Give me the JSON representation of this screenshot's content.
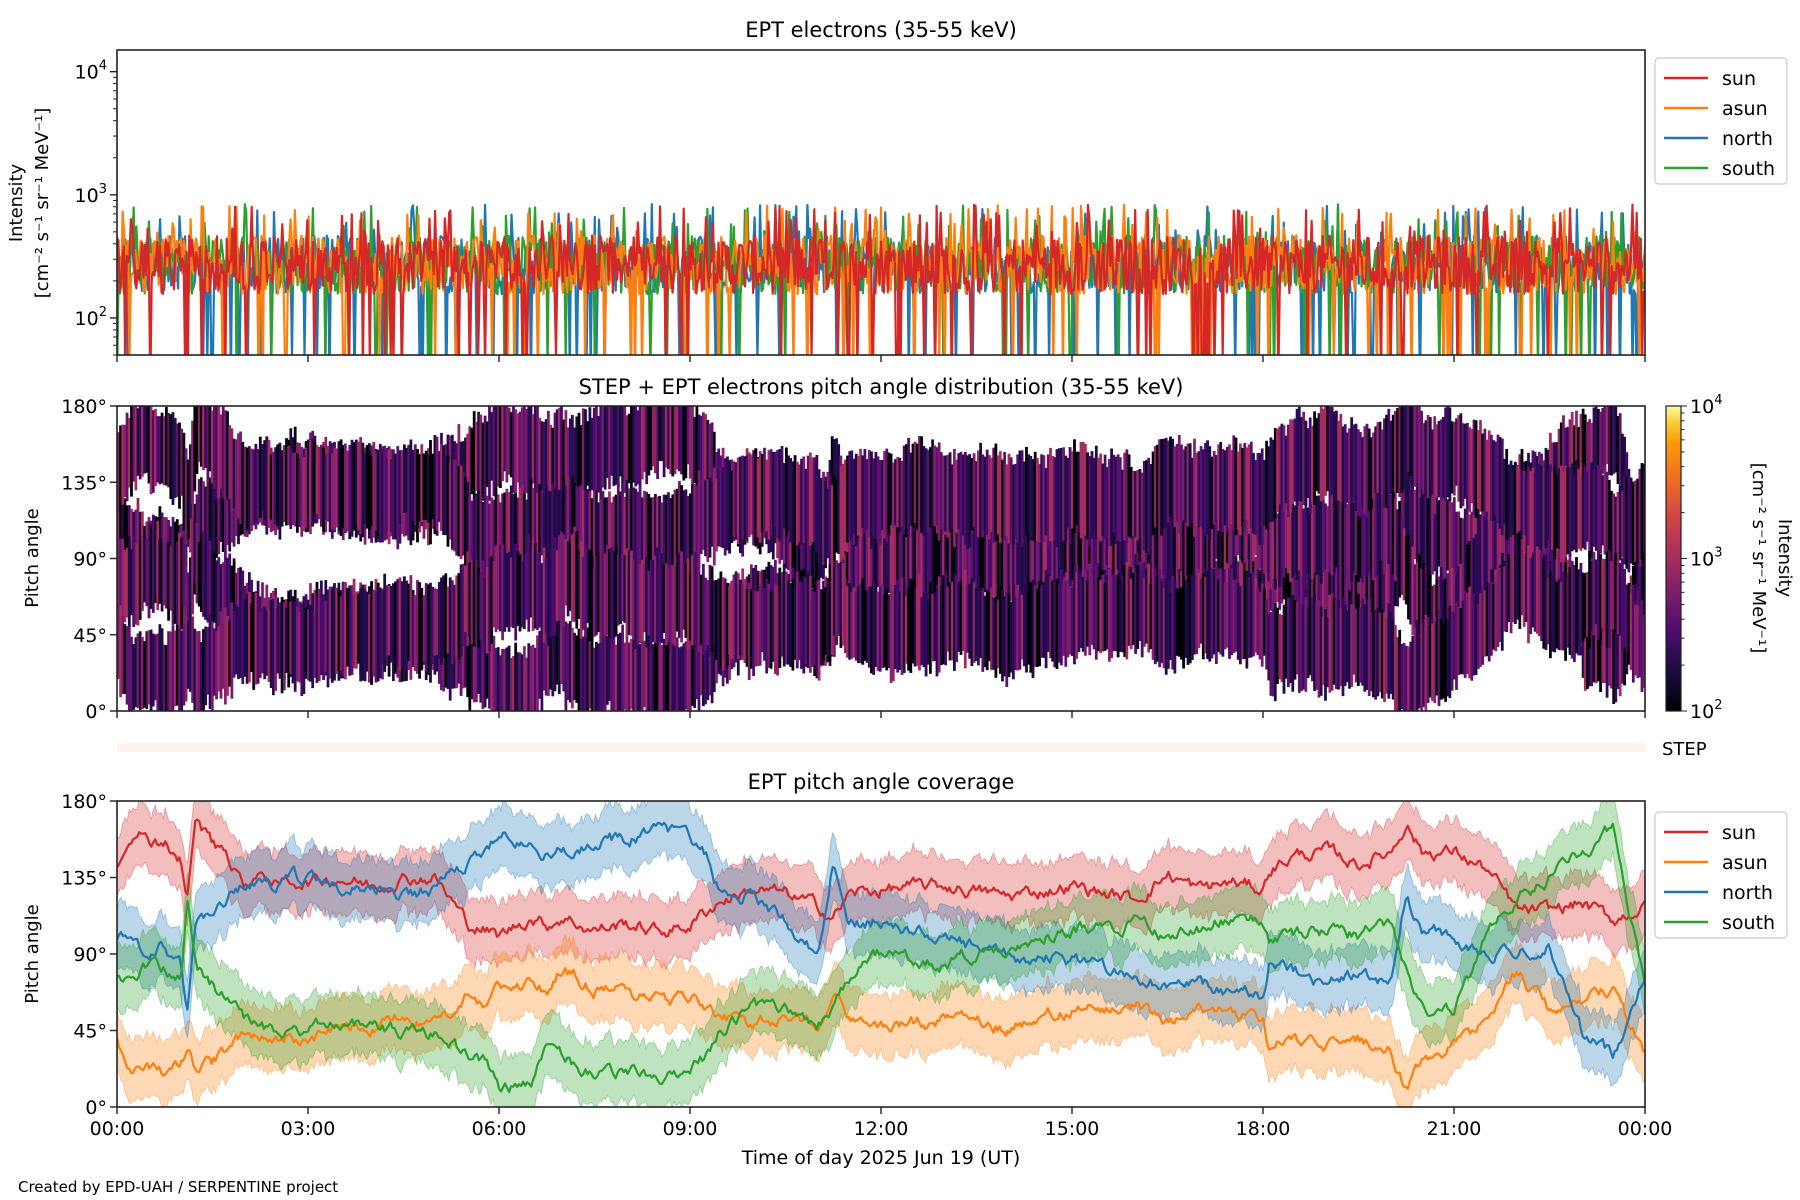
{
  "credit": "Created by EPD-UAH / SERPENTINE project",
  "colors": {
    "sun": "#d62728",
    "asun": "#ff7f0e",
    "north": "#1f77b4",
    "south": "#2ca02c",
    "step_strip": "#fdf1ec"
  },
  "chart_data": [
    {
      "id": "intensity",
      "type": "line",
      "title": "EPT electrons (35-55 keV)",
      "ylabel_line1": "Intensity",
      "ylabel_line2": "[cm⁻² s⁻¹ sr⁻¹ MeV⁻¹]",
      "yscale": "log",
      "ylim": [
        50,
        15000
      ],
      "yticks": [
        {
          "value": 100,
          "label_base": "10",
          "label_exp": "2"
        },
        {
          "value": 1000,
          "label_base": "10",
          "label_exp": "3"
        },
        {
          "value": 10000,
          "label_base": "10",
          "label_exp": "4"
        }
      ],
      "xlim_hours": [
        0,
        24
      ],
      "legend": [
        "sun",
        "asun",
        "north",
        "south"
      ],
      "legend_position": "outside-upper-right",
      "series_summary": {
        "typical_level": 270,
        "typical_peak": 700,
        "max_spike": 900,
        "dropouts_to_below": 50
      },
      "series_order": [
        "north",
        "south",
        "asun",
        "sun"
      ]
    },
    {
      "id": "pad",
      "type": "heatmap",
      "title": "STEP + EPT electrons pitch angle distribution (35-55 keV)",
      "ylabel": "Pitch angle",
      "ylim": [
        0,
        180
      ],
      "yticks": [
        "0°",
        "45°",
        "90°",
        "135°",
        "180°"
      ],
      "ytick_values": [
        0,
        45,
        90,
        135,
        180
      ],
      "colormap": "inferno",
      "colorbar": {
        "scale": "log",
        "range": [
          100,
          10000
        ],
        "ticks": [
          {
            "value": 100,
            "label_base": "10",
            "label_exp": "2"
          },
          {
            "value": 1000,
            "label_base": "10",
            "label_exp": "3"
          },
          {
            "value": 10000,
            "label_base": "10",
            "label_exp": "4"
          }
        ],
        "label_line1": "Intensity",
        "label_line2": "[cm⁻² s⁻¹ sr⁻¹ MeV⁻¹]"
      },
      "typical_intensity": 270,
      "step_label": "STEP"
    },
    {
      "id": "coverage",
      "type": "line",
      "title": "EPT pitch angle coverage",
      "ylabel": "Pitch angle",
      "xlabel": "Time of day 2025 Jun 19 (UT)",
      "ylim": [
        0,
        180
      ],
      "yticks": [
        "0°",
        "45°",
        "90°",
        "135°",
        "180°"
      ],
      "ytick_values": [
        0,
        45,
        90,
        135,
        180
      ],
      "xticks": [
        "00:00",
        "03:00",
        "06:00",
        "09:00",
        "12:00",
        "15:00",
        "18:00",
        "21:00",
        "00:00"
      ],
      "xtick_hours": [
        0,
        3,
        6,
        9,
        12,
        15,
        18,
        21,
        24
      ],
      "legend": [
        "sun",
        "asun",
        "north",
        "south"
      ],
      "legend_position": "outside-upper-right",
      "band_halfwidth_deg": 18,
      "x_hours": [
        0,
        0.25,
        0.5,
        0.75,
        1.0,
        1.1,
        1.25,
        1.5,
        2.0,
        2.5,
        3.0,
        3.5,
        4.0,
        4.5,
        5.0,
        5.5,
        5.75,
        6.0,
        6.5,
        6.75,
        7.0,
        7.5,
        8.0,
        8.5,
        9.0,
        9.25,
        9.5,
        10.0,
        10.5,
        11.0,
        11.25,
        11.5,
        12.0,
        13.0,
        14.0,
        15.0,
        16.0,
        16.5,
        17.0,
        17.5,
        18.0,
        18.1,
        18.5,
        19.0,
        19.5,
        20.0,
        20.25,
        20.5,
        21.0,
        21.5,
        22.0,
        22.5,
        23.0,
        23.5,
        24.0
      ],
      "series": [
        {
          "name": "sun",
          "values": [
            140,
            162,
            158,
            157,
            145,
            125,
            168,
            155,
            132,
            133,
            133,
            135,
            130,
            135,
            135,
            108,
            105,
            100,
            112,
            107,
            112,
            104,
            108,
            103,
            107,
            115,
            122,
            128,
            125,
            118,
            112,
            125,
            128,
            130,
            124,
            130,
            122,
            137,
            128,
            132,
            128,
            140,
            148,
            150,
            143,
            150,
            168,
            150,
            150,
            140,
            115,
            115,
            120,
            110,
            118
          ]
        },
        {
          "name": "asun",
          "values": [
            38,
            20,
            22,
            18,
            25,
            35,
            22,
            25,
            45,
            42,
            40,
            48,
            48,
            55,
            48,
            65,
            60,
            70,
            72,
            68,
            82,
            70,
            68,
            62,
            65,
            58,
            52,
            48,
            55,
            50,
            62,
            55,
            48,
            52,
            48,
            58,
            58,
            50,
            58,
            55,
            52,
            35,
            40,
            35,
            40,
            35,
            10,
            30,
            35,
            50,
            80,
            55,
            62,
            70,
            30
          ]
        },
        {
          "name": "north",
          "values": [
            100,
            100,
            92,
            95,
            85,
            55,
            110,
            115,
            130,
            132,
            135,
            128,
            130,
            125,
            128,
            143,
            145,
            162,
            152,
            148,
            150,
            158,
            158,
            162,
            160,
            148,
            125,
            125,
            110,
            90,
            145,
            110,
            108,
            98,
            88,
            88,
            78,
            70,
            72,
            68,
            65,
            85,
            80,
            72,
            78,
            72,
            125,
            105,
            100,
            90,
            88,
            95,
            45,
            30,
            80
          ]
        },
        {
          "name": "south",
          "values": [
            75,
            80,
            82,
            80,
            75,
            120,
            80,
            72,
            50,
            45,
            45,
            50,
            45,
            45,
            42,
            30,
            28,
            10,
            15,
            35,
            28,
            20,
            22,
            18,
            22,
            30,
            45,
            58,
            55,
            48,
            60,
            75,
            90,
            85,
            95,
            105,
            108,
            100,
            105,
            112,
            110,
            95,
            100,
            105,
            100,
            110,
            80,
            60,
            55,
            100,
            125,
            135,
            150,
            165,
            70
          ]
        }
      ]
    }
  ]
}
